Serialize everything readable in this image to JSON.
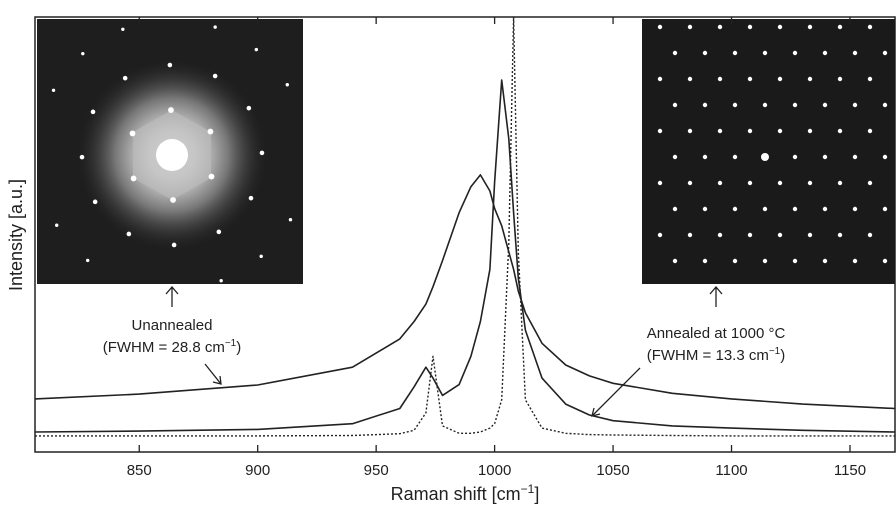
{
  "chart_data": {
    "type": "line",
    "xlabel": {
      "text": "Raman shift  [cm",
      "sup": "−1",
      "end": "]"
    },
    "ylabel": "Intensity  [a.u.]",
    "xlim": [
      806,
      1169
    ],
    "ylim": [
      0,
      100
    ],
    "xticks": [
      850,
      900,
      950,
      1000,
      1050,
      1100,
      1150
    ],
    "x": [
      806,
      850,
      900,
      940,
      960,
      966,
      971,
      974,
      978,
      985,
      990,
      994,
      998,
      1000,
      1003,
      1006,
      1008,
      1010,
      1013,
      1020,
      1030,
      1040,
      1050,
      1075,
      1100,
      1130,
      1169
    ],
    "series": [
      {
        "color": "#222222",
        "dash": "solid",
        "values": [
          12.2,
          13.3,
          15.4,
          19.5,
          26,
          30,
          34,
          38,
          44,
          55,
          61,
          63.7,
          60,
          56,
          52,
          46,
          42,
          37,
          32,
          25,
          20,
          17.5,
          15.8,
          13.5,
          12.2,
          11,
          10
        ]
      },
      {
        "color": "#222222",
        "dash": "solid",
        "values": [
          4.6,
          4.8,
          5.2,
          6.5,
          10,
          15,
          19.5,
          17,
          13,
          15.5,
          22,
          30,
          42,
          62,
          85.5,
          72,
          55,
          40,
          28,
          17,
          11,
          8.5,
          7.2,
          6,
          5.5,
          5,
          4.6
        ]
      },
      {
        "color": "#222222",
        "dash": "dotted",
        "values": [
          3.7,
          3.7,
          3.7,
          3.8,
          4.2,
          5,
          9,
          22,
          6,
          4.3,
          4.3,
          4.6,
          5.5,
          6.5,
          12,
          48,
          100,
          46,
          12,
          5.5,
          4.3,
          4,
          3.9,
          3.8,
          3.7,
          3.7,
          3.7
        ]
      }
    ],
    "annotations": [
      {
        "title": "Unannealed",
        "text": "(FWHM = 28.8 cm",
        "sup": "−1",
        "end": ")"
      },
      {
        "title": "Annealed at 1000 °C",
        "text": "(FWHM = 13.3 cm",
        "sup": "−1",
        "end": ")"
      }
    ]
  }
}
